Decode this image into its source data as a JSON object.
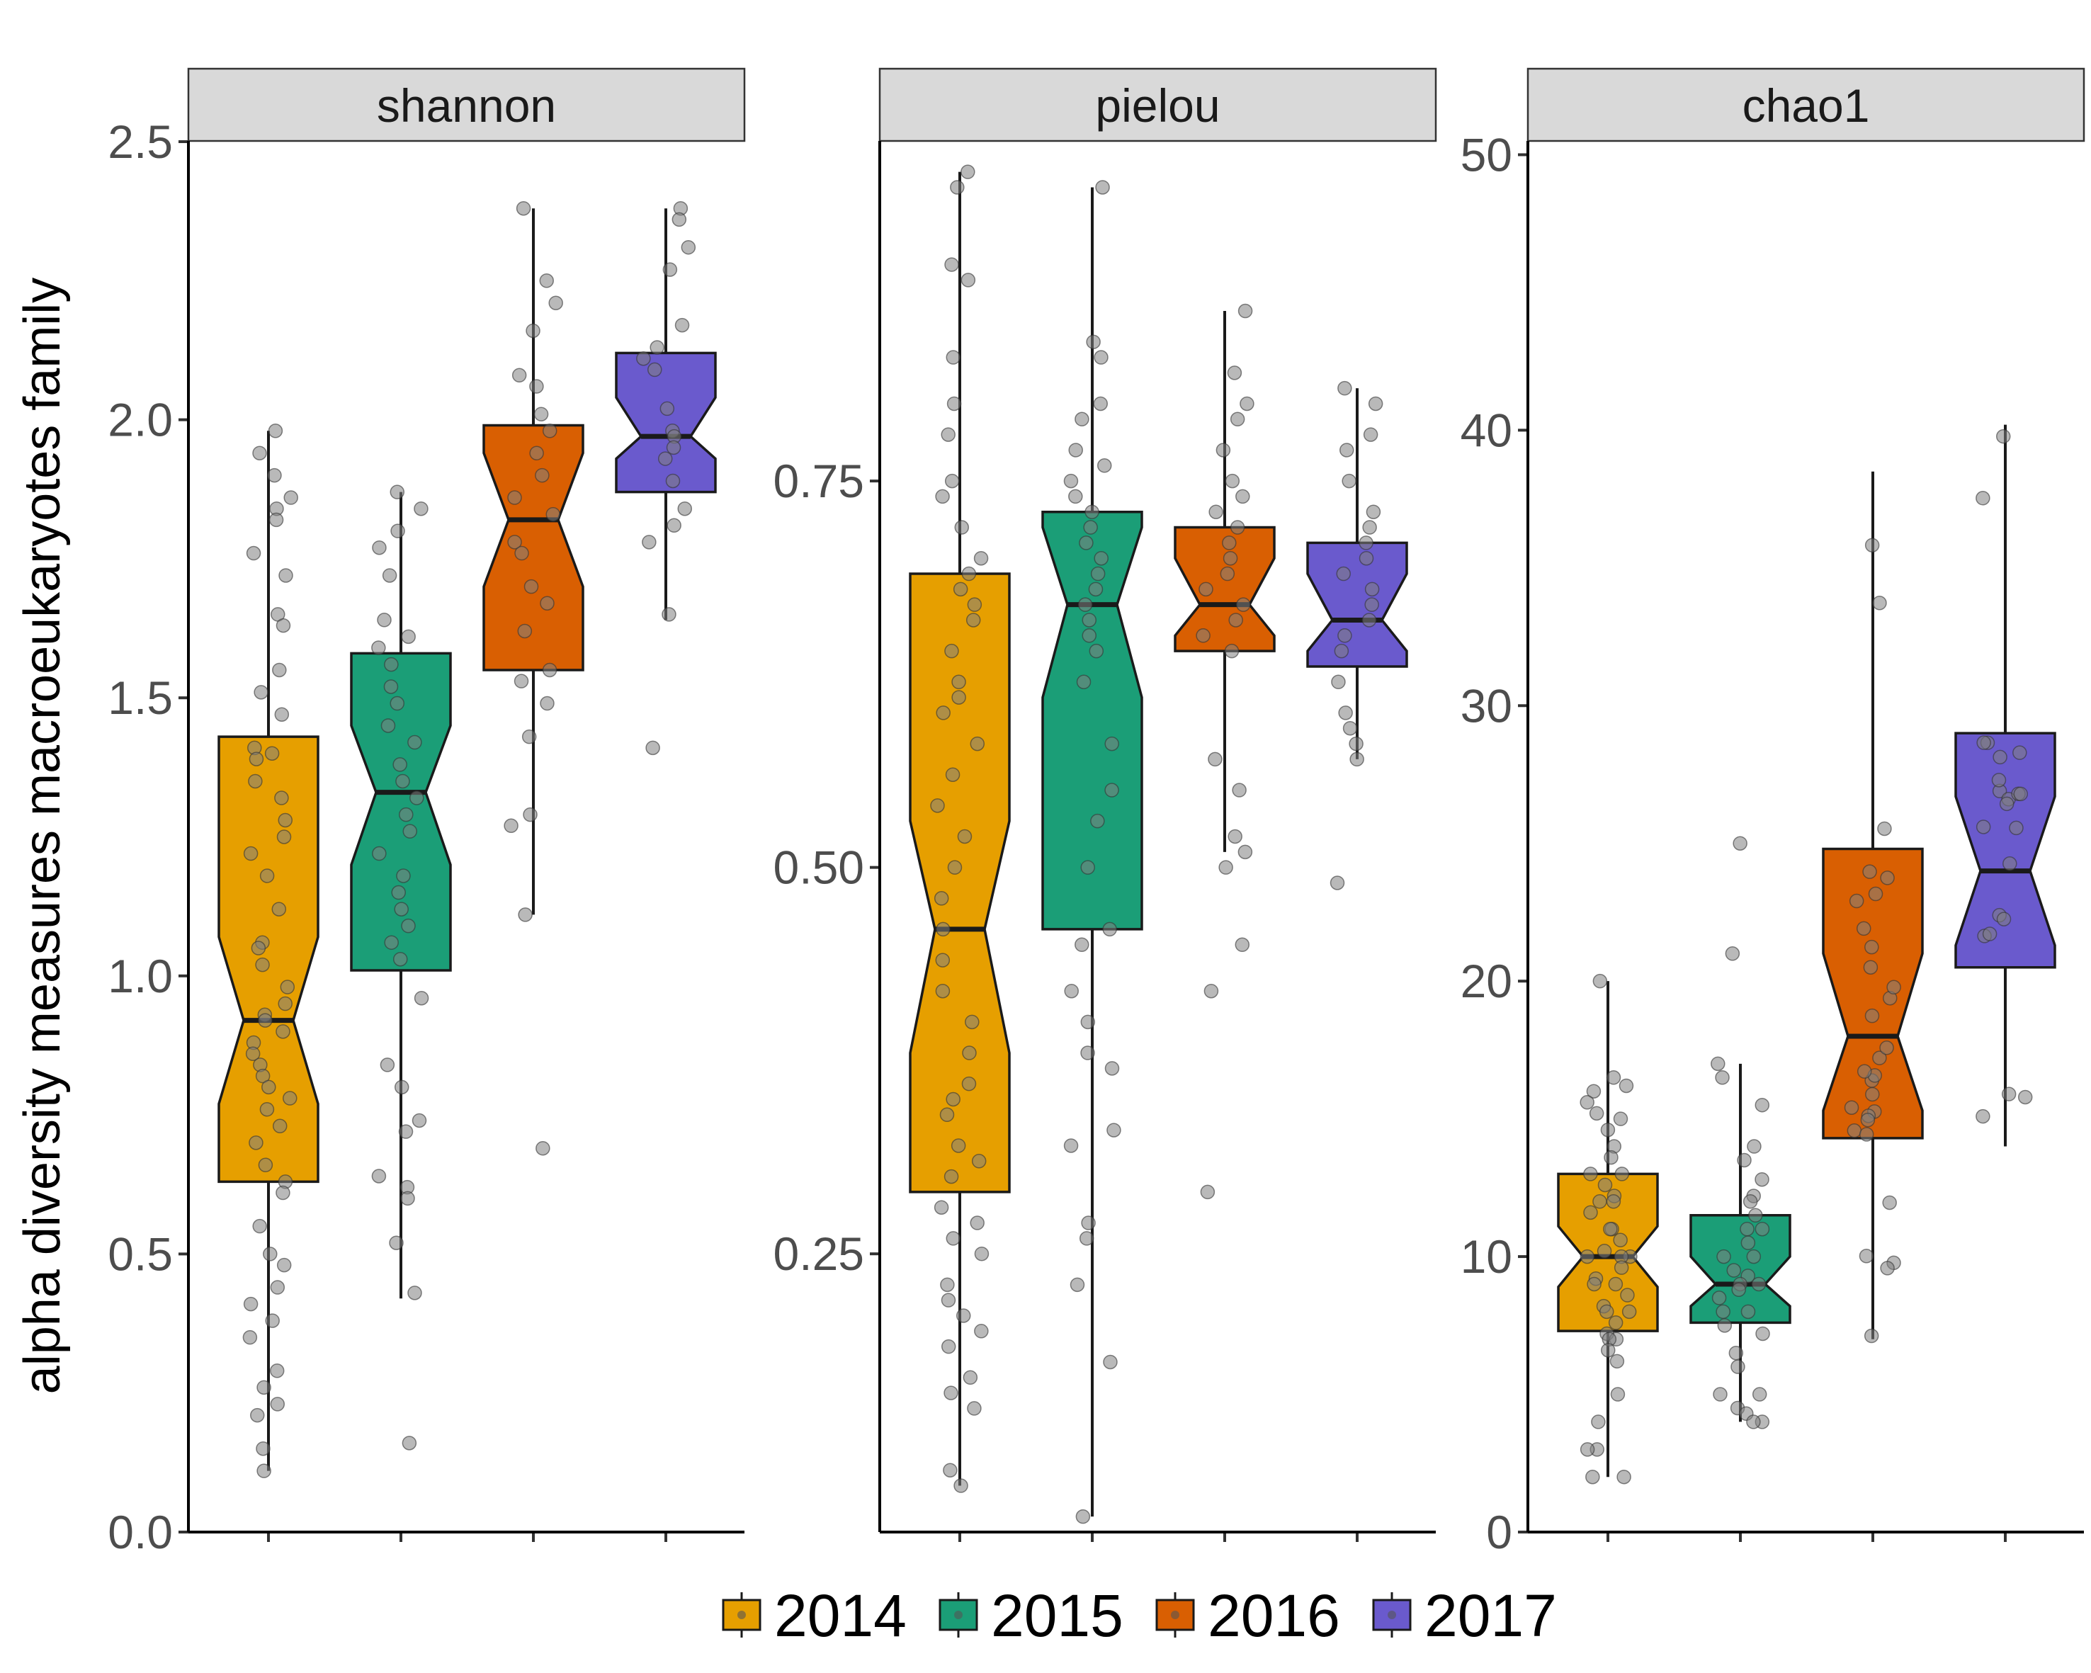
{
  "chart_data": {
    "type": "boxplot",
    "ylabel": "alpha diversity measures macroeukaryotes family",
    "legend": {
      "position": "bottom",
      "entries": [
        "2014",
        "2015",
        "2016",
        "2017"
      ]
    },
    "colors": {
      "2014": "#E69F00",
      "2015": "#1B9E77",
      "2016": "#D95F02",
      "2017": "#6A5ACD",
      "strip_fill": "#d9d9d9",
      "points": "#7f7f7f"
    },
    "notched": true,
    "jittered_points": true,
    "panels": [
      {
        "title": "shannon",
        "ylim": [
          0,
          2.5
        ],
        "yticks": [
          0.0,
          0.5,
          1.0,
          1.5,
          2.0,
          2.5
        ],
        "ytick_labels": [
          "0.0",
          "0.5",
          "1.0",
          "1.5",
          "2.0",
          "2.5"
        ],
        "boxes": [
          {
            "series": "2014",
            "min": 0.11,
            "q1": 0.63,
            "median": 0.92,
            "q3": 1.43,
            "max": 1.98,
            "notch_low": 0.77,
            "notch_high": 1.07,
            "points": [
              1.98,
              1.94,
              1.9,
              1.86,
              1.84,
              1.82,
              1.76,
              1.72,
              1.65,
              1.63,
              1.55,
              1.51,
              1.47,
              1.41,
              1.4,
              1.39,
              1.35,
              1.32,
              1.28,
              1.25,
              1.22,
              1.18,
              1.12,
              1.06,
              1.05,
              1.02,
              0.98,
              0.95,
              0.93,
              0.92,
              0.9,
              0.88,
              0.86,
              0.84,
              0.82,
              0.8,
              0.78,
              0.76,
              0.73,
              0.7,
              0.66,
              0.63,
              0.61,
              0.55,
              0.5,
              0.48,
              0.44,
              0.41,
              0.38,
              0.35,
              0.29,
              0.26,
              0.23,
              0.21,
              0.15,
              0.11
            ]
          },
          {
            "series": "2015",
            "min": 0.42,
            "q1": 1.01,
            "median": 1.33,
            "q3": 1.58,
            "max": 1.87,
            "notch_low": 1.2,
            "notch_high": 1.45,
            "points": [
              1.87,
              1.84,
              1.8,
              1.77,
              1.72,
              1.64,
              1.61,
              1.59,
              1.56,
              1.52,
              1.49,
              1.45,
              1.42,
              1.38,
              1.35,
              1.32,
              1.29,
              1.26,
              1.22,
              1.18,
              1.15,
              1.12,
              1.09,
              1.06,
              1.03,
              0.96,
              0.84,
              0.8,
              0.74,
              0.72,
              0.64,
              0.62,
              0.6,
              0.52,
              0.43,
              0.16
            ]
          },
          {
            "series": "2016",
            "min": 1.11,
            "q1": 1.55,
            "median": 1.82,
            "q3": 1.99,
            "max": 2.38,
            "notch_low": 1.7,
            "notch_high": 1.94,
            "points": [
              2.38,
              2.25,
              2.21,
              2.16,
              2.08,
              2.06,
              2.01,
              1.98,
              1.94,
              1.9,
              1.86,
              1.83,
              1.78,
              1.76,
              1.7,
              1.67,
              1.62,
              1.55,
              1.53,
              1.49,
              1.43,
              1.29,
              1.27,
              1.11,
              0.69
            ]
          },
          {
            "series": "2017",
            "min": 1.64,
            "q1": 1.87,
            "median": 1.97,
            "q3": 2.12,
            "max": 2.38,
            "notch_low": 1.93,
            "notch_high": 2.04,
            "points": [
              2.38,
              2.36,
              2.31,
              2.27,
              2.17,
              2.13,
              2.11,
              2.09,
              2.02,
              1.98,
              1.97,
              1.95,
              1.93,
              1.89,
              1.84,
              1.81,
              1.78,
              1.65,
              1.41
            ]
          }
        ]
      },
      {
        "title": "pielou",
        "ylim": [
          0.07,
          0.97
        ],
        "yticks": [
          0.25,
          0.5,
          0.75
        ],
        "ytick_labels": [
          "0.25",
          "0.50",
          "0.75"
        ],
        "boxes": [
          {
            "series": "2014",
            "min": 0.1,
            "q1": 0.29,
            "median": 0.46,
            "q3": 0.69,
            "max": 0.95,
            "notch_low": 0.38,
            "notch_high": 0.53,
            "points": [
              0.95,
              0.94,
              0.89,
              0.88,
              0.83,
              0.8,
              0.78,
              0.75,
              0.74,
              0.72,
              0.7,
              0.69,
              0.68,
              0.67,
              0.66,
              0.64,
              0.62,
              0.61,
              0.6,
              0.58,
              0.56,
              0.54,
              0.52,
              0.5,
              0.48,
              0.46,
              0.44,
              0.42,
              0.4,
              0.38,
              0.36,
              0.35,
              0.34,
              0.32,
              0.31,
              0.3,
              0.28,
              0.27,
              0.26,
              0.25,
              0.23,
              0.22,
              0.21,
              0.2,
              0.19,
              0.17,
              0.16,
              0.15,
              0.11,
              0.1
            ]
          },
          {
            "series": "2015",
            "min": 0.08,
            "q1": 0.46,
            "median": 0.67,
            "q3": 0.73,
            "max": 0.94,
            "notch_low": 0.61,
            "notch_high": 0.72,
            "points": [
              0.94,
              0.84,
              0.83,
              0.8,
              0.79,
              0.77,
              0.76,
              0.75,
              0.74,
              0.73,
              0.72,
              0.71,
              0.7,
              0.69,
              0.68,
              0.67,
              0.66,
              0.65,
              0.64,
              0.62,
              0.58,
              0.55,
              0.53,
              0.5,
              0.46,
              0.45,
              0.42,
              0.4,
              0.38,
              0.37,
              0.33,
              0.32,
              0.27,
              0.26,
              0.23,
              0.18,
              0.08
            ]
          },
          {
            "series": "2016",
            "min": 0.51,
            "q1": 0.64,
            "median": 0.67,
            "q3": 0.72,
            "max": 0.86,
            "notch_low": 0.65,
            "notch_high": 0.7,
            "points": [
              0.86,
              0.82,
              0.8,
              0.79,
              0.77,
              0.75,
              0.74,
              0.73,
              0.72,
              0.71,
              0.7,
              0.69,
              0.68,
              0.67,
              0.66,
              0.65,
              0.64,
              0.57,
              0.55,
              0.52,
              0.51,
              0.5,
              0.45,
              0.42,
              0.29
            ]
          },
          {
            "series": "2017",
            "min": 0.57,
            "q1": 0.63,
            "median": 0.66,
            "q3": 0.71,
            "max": 0.81,
            "notch_low": 0.64,
            "notch_high": 0.69,
            "points": [
              0.81,
              0.8,
              0.78,
              0.77,
              0.75,
              0.73,
              0.72,
              0.71,
              0.7,
              0.69,
              0.68,
              0.67,
              0.66,
              0.65,
              0.64,
              0.62,
              0.6,
              0.59,
              0.58,
              0.57,
              0.49
            ]
          }
        ]
      },
      {
        "title": "chao1",
        "ylim": [
          0,
          50.5
        ],
        "yticks": [
          0,
          10,
          20,
          30,
          40,
          50
        ],
        "ytick_labels": [
          "0",
          "10",
          "20",
          "30",
          "40",
          "50"
        ],
        "boxes": [
          {
            "series": "2014",
            "min": 2,
            "q1": 7.3,
            "median": 10,
            "q3": 13,
            "max": 20,
            "notch_low": 8.9,
            "notch_high": 11.1,
            "points": [
              20,
              16.5,
              16.2,
              16,
              15.6,
              15.2,
              15,
              14.6,
              14,
              13.6,
              13,
              13,
              12.6,
              12.2,
              12,
              12,
              11.6,
              11,
              11,
              10.6,
              10.2,
              10,
              10,
              10,
              9.6,
              9.2,
              9,
              9,
              8.6,
              8.2,
              8,
              8,
              7.6,
              7.2,
              7,
              7,
              6.6,
              6.2,
              5,
              4,
              3,
              3,
              2,
              2
            ]
          },
          {
            "series": "2015",
            "min": 4,
            "q1": 7.6,
            "median": 9,
            "q3": 11.5,
            "max": 17,
            "notch_low": 8.2,
            "notch_high": 10,
            "points": [
              25,
              21,
              17,
              16.5,
              15.5,
              14,
              13.5,
              12.8,
              12.2,
              12,
              11.5,
              11,
              11,
              10.5,
              10,
              10,
              9.5,
              9.3,
              9,
              9,
              8.8,
              8.5,
              8,
              8,
              7.5,
              7.2,
              6.5,
              6,
              5,
              5,
              4.5,
              4.3,
              4,
              4
            ]
          },
          {
            "series": "2016",
            "min": 7,
            "q1": 14.3,
            "median": 18,
            "q3": 24.8,
            "max": 38.5,
            "notch_low": 15.3,
            "notch_high": 21
          },
          {
            "series": "2017",
            "min": 14,
            "q1": 20.5,
            "median": 24,
            "q3": 29,
            "max": 40.2,
            "notch_low": 21.3,
            "notch_high": 26.7
          }
        ]
      }
    ]
  }
}
